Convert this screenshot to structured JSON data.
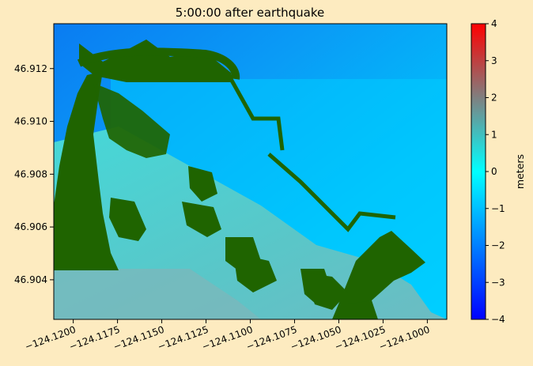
{
  "chart_data": {
    "type": "heatmap",
    "title": "5:00:00 after earthquake",
    "xlabel": "",
    "ylabel": "",
    "xlim": [
      -124.1211,
      -124.0989
    ],
    "ylim": [
      46.9025,
      46.9137
    ],
    "x_ticks": [
      -124.12,
      -124.1175,
      -124.115,
      -124.1125,
      -124.11,
      -124.1075,
      -124.105,
      -124.1025,
      -124.1
    ],
    "x_tick_labels": [
      "−124.1200",
      "−124.1175",
      "−124.1150",
      "−124.1125",
      "−124.1100",
      "−124.1075",
      "−124.1050",
      "−124.1025",
      "−124.1000"
    ],
    "y_ticks": [
      46.904,
      46.906,
      46.908,
      46.91,
      46.912
    ],
    "y_tick_labels": [
      "46.904",
      "46.906",
      "46.908",
      "46.910",
      "46.912"
    ],
    "colorbar": {
      "label": "meters",
      "range": [
        -4,
        4
      ],
      "ticks": [
        -4,
        -3,
        -2,
        -1,
        0,
        1,
        2,
        3,
        4
      ],
      "tick_labels": [
        "−4",
        "−3",
        "−2",
        "−1",
        "0",
        "1",
        "2",
        "3",
        "4"
      ],
      "colors": [
        "#0000ff",
        "#00ffff",
        "#ff0000"
      ]
    },
    "land_color": "#1f6400",
    "water_color": "#00ccff",
    "grid": false
  }
}
